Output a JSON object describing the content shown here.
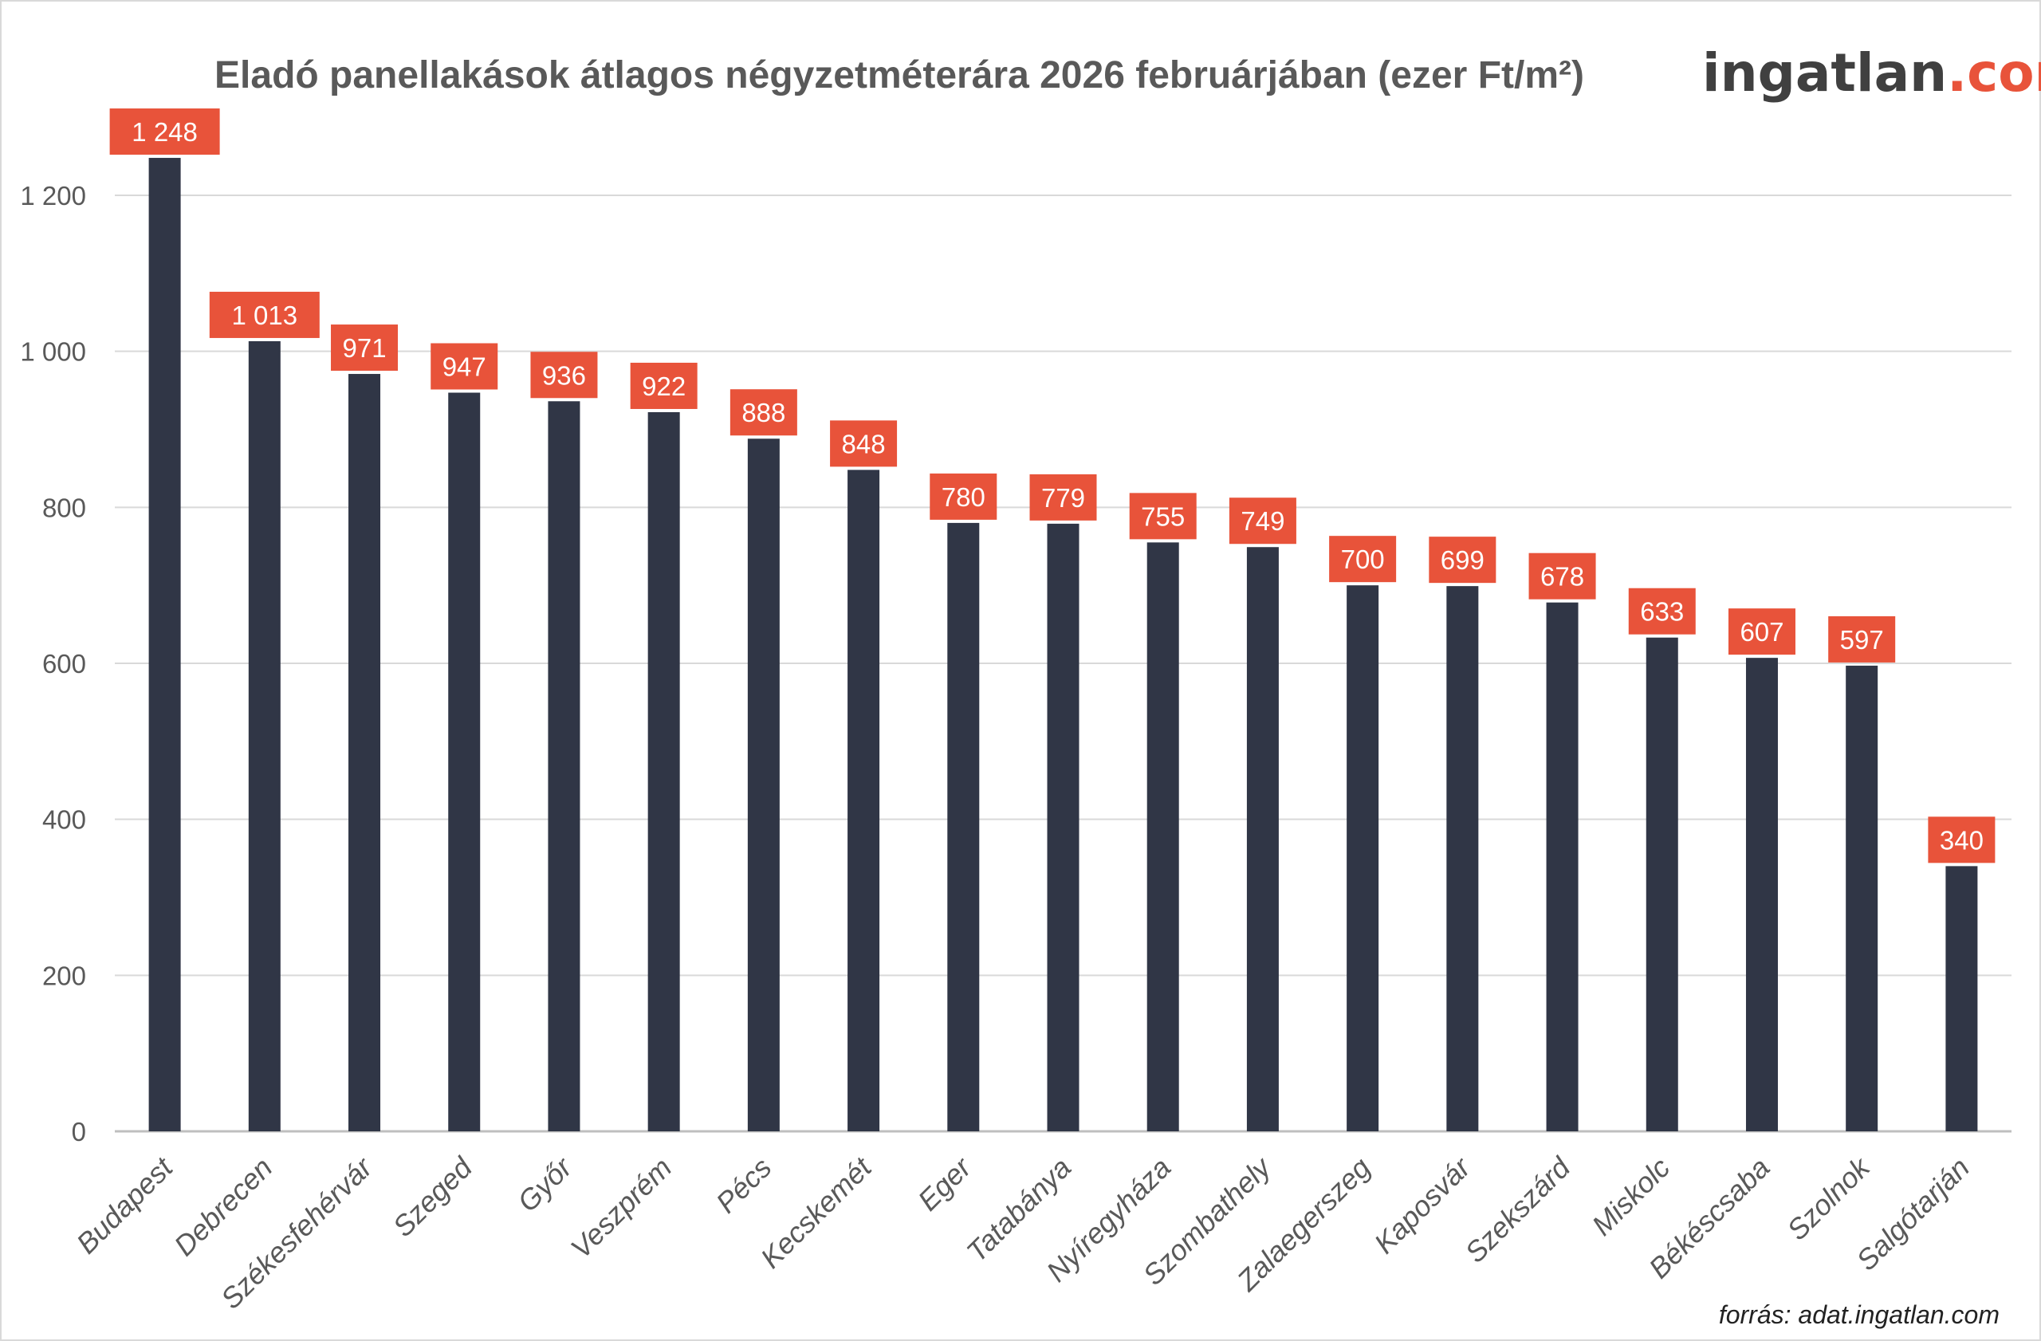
{
  "chart_data": {
    "type": "bar",
    "title": "Eladó panellakások átlagos négyzetméterára 2026 februárjában (ezer Ft/m²)",
    "categories": [
      "Budapest",
      "Debrecen",
      "Székesfehérvár",
      "Szeged",
      "Győr",
      "Veszprém",
      "Pécs",
      "Kecskemét",
      "Eger",
      "Tatabánya",
      "Nyíregyháza",
      "Szombathely",
      "Zalaegerszeg",
      "Kaposvár",
      "Szekszárd",
      "Miskolc",
      "Békéscsaba",
      "Szolnok",
      "Salgótarján"
    ],
    "values": [
      1248,
      1013,
      971,
      947,
      936,
      922,
      888,
      848,
      780,
      779,
      755,
      749,
      700,
      699,
      678,
      633,
      607,
      597,
      340
    ],
    "data_labels": [
      "1 248",
      "1 013",
      "971",
      "947",
      "936",
      "922",
      "888",
      "848",
      "780",
      "779",
      "755",
      "749",
      "700",
      "699",
      "678",
      "633",
      "607",
      "597",
      "340"
    ],
    "y_ticks": [
      0,
      200,
      400,
      600,
      800,
      1000,
      1200
    ],
    "y_tick_labels": [
      "0",
      "200",
      "400",
      "600",
      "800",
      "1 000",
      "1 200"
    ],
    "ylim": [
      0,
      1200
    ],
    "grid": true,
    "xlabel": "",
    "ylabel": "",
    "colors": {
      "bar": "#303646",
      "label_bg": "#E8533A",
      "grid": "#D9D9D9"
    }
  },
  "logo": {
    "main": "ingatlan",
    "suffix": ".com",
    "color_main": "#404040",
    "color_accent": "#E8533A"
  },
  "source": "forrás: adat.ingatlan.com"
}
